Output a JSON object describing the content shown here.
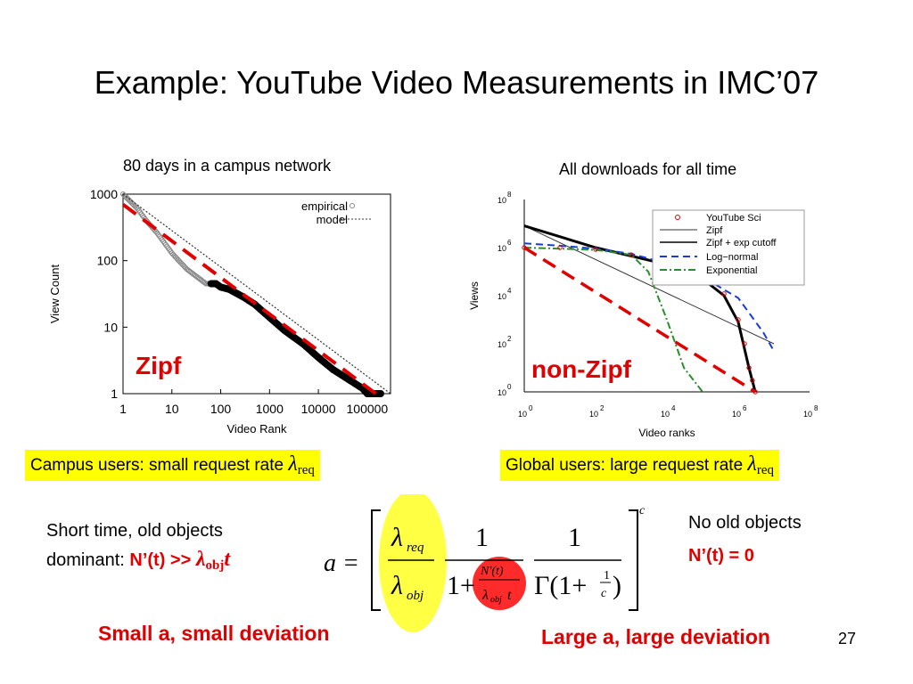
{
  "slide": {
    "title": "Example: YouTube Video Measurements in IMC’07",
    "page_number": "27"
  },
  "left_panel": {
    "caption": "80 days in a campus network",
    "overlay_label": "Zipf",
    "box_text": "Campus users: small request rate ",
    "box_lambda": "λ",
    "box_sub": "req"
  },
  "right_panel": {
    "caption": "All downloads for all time",
    "overlay_label": "non-Zipf",
    "box_text": "Global users: large request rate ",
    "box_lambda": "λ",
    "box_sub": "req"
  },
  "bottom": {
    "left_line1": "Short time, old objects",
    "left_line2_prefix": "dominant: ",
    "left_line2_red": "N’(t) >> ",
    "left_lambda": "λ",
    "left_sub": "obj",
    "left_t": "t",
    "right_line1": "No old objects",
    "right_line2": "N’(t) = 0",
    "left_conclusion": "Small a, small deviation",
    "right_conclusion": "Large a, large deviation"
  },
  "formula": {
    "lhs": "a =",
    "lambda_req": "λ",
    "sub_req": "req",
    "lambda_obj": "λ",
    "sub_obj": "obj",
    "one": "1",
    "one_plus": "1+",
    "n_prime_t": "N'(t)",
    "lambda_obj_t": "λ",
    "sub_obj_t": "obj",
    "t": "t",
    "gamma": "Γ(1+",
    "one_over_c_num": "1",
    "one_over_c_den": "c",
    "close_paren": ")",
    "exponent": "c"
  },
  "colors": {
    "red_dashed": "#e00000",
    "highlight_yellow": "#ffff00",
    "ellipse_yellow": "#ffff44",
    "circle_red": "#ff2a2a",
    "zipf_blue": "#1a3cd6",
    "exponential_green": "#2a8f2a"
  },
  "chart_data": [
    {
      "type": "scatter",
      "title": "",
      "xlabel": "Video Rank",
      "ylabel": "View Count",
      "x_scale": "log",
      "y_scale": "log",
      "xlim": [
        1,
        300000
      ],
      "ylim": [
        1,
        1000
      ],
      "xticks": [
        "1",
        "10",
        "100",
        "1000",
        "10000",
        "100000"
      ],
      "yticks": [
        "1",
        "10",
        "100",
        "1000"
      ],
      "legend_position": "top-right",
      "series": [
        {
          "name": "empirical",
          "x": [
            1,
            2,
            3,
            5,
            10,
            20,
            50,
            80,
            100,
            150,
            200,
            300,
            500,
            1000,
            2000,
            5000,
            10000,
            20000,
            50000,
            80000,
            100000,
            200000
          ],
          "y": [
            1000,
            600,
            400,
            260,
            130,
            75,
            45,
            45,
            40,
            37,
            33,
            28,
            22,
            14,
            9,
            5.5,
            3.5,
            2.3,
            1.5,
            1.2,
            1,
            1
          ]
        },
        {
          "name": "model",
          "x": [
            1,
            300000
          ],
          "y": [
            1000,
            1
          ]
        },
        {
          "name": "",
          "x": [
            1,
            150000
          ],
          "y": [
            700,
            1
          ]
        }
      ]
    },
    {
      "type": "line",
      "title": "",
      "xlabel": "Video ranks",
      "ylabel": "Views",
      "x_scale": "log",
      "y_scale": "log",
      "xlim": [
        1,
        100000000
      ],
      "ylim": [
        1,
        100000000
      ],
      "xticks": [
        "10^0",
        "10^2",
        "10^4",
        "10^6",
        "10^8"
      ],
      "yticks": [
        "10^0",
        "10^2",
        "10^4",
        "10^6",
        "10^8"
      ],
      "legend_position": "top-right",
      "series": [
        {
          "name": "YouTube Sci",
          "x": [
            1,
            10,
            100,
            1000,
            10000,
            100000,
            400000,
            1000000,
            1500000,
            2000000,
            2500000,
            3000000
          ],
          "y": [
            1000000,
            1000000,
            850000,
            500000,
            200000,
            50000,
            12000,
            1000,
            100,
            10,
            3,
            1
          ]
        },
        {
          "name": "Zipf",
          "x": [
            1,
            10000000
          ],
          "y": [
            8000000,
            100
          ]
        },
        {
          "name": "Zipf + exp cutoff",
          "x": [
            1,
            100,
            10000,
            100000,
            400000,
            1000000,
            2000000,
            3000000
          ],
          "y": [
            8000000,
            1000000,
            200000,
            50000,
            10000,
            800,
            10,
            1
          ]
        },
        {
          "name": "Log−normal",
          "x": [
            1,
            10,
            100,
            1000,
            10000,
            100000,
            1000000,
            5000000,
            10000000
          ],
          "y": [
            1500000,
            1200000,
            900000,
            550000,
            220000,
            60000,
            8000,
            300,
            50
          ]
        },
        {
          "name": "Exponential",
          "x": [
            1,
            10,
            100,
            1000,
            3000,
            10000,
            30000,
            100000
          ],
          "y": [
            1000000,
            900000,
            800000,
            500000,
            100000,
            1000,
            10,
            1
          ]
        },
        {
          "name": "",
          "x": [
            1,
            3000000
          ],
          "y": [
            1000000,
            1
          ]
        }
      ]
    }
  ]
}
